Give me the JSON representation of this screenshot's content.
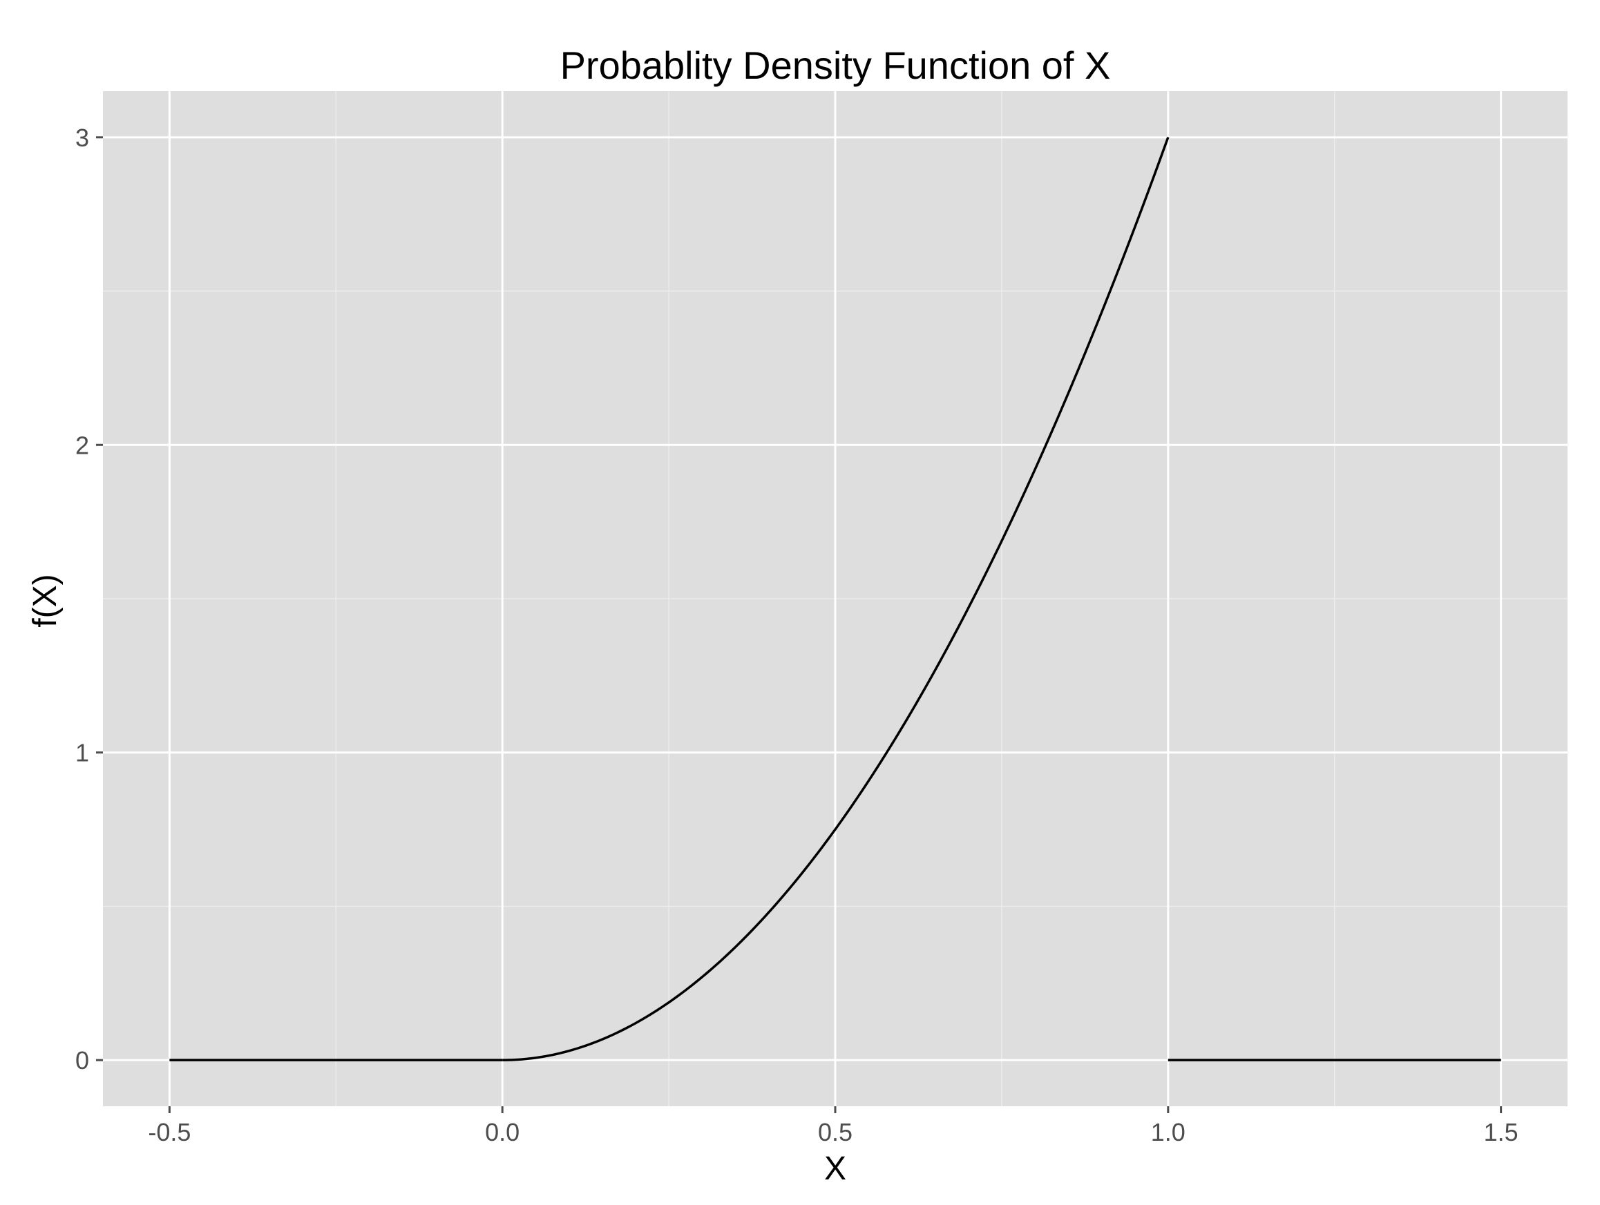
{
  "chart_data": {
    "type": "line",
    "title": "Probablity Density Function of X",
    "xlabel": "X",
    "ylabel": "f(X)",
    "xlim": [
      -0.6,
      1.6
    ],
    "ylim": [
      -0.15,
      3.15
    ],
    "x_ticks": [
      -0.5,
      0.0,
      0.5,
      1.0,
      1.5
    ],
    "x_tick_labels": [
      "-0.5",
      "0.0",
      "0.5",
      "1.0",
      "1.5"
    ],
    "y_ticks": [
      0,
      1,
      2,
      3
    ],
    "y_tick_labels": [
      "0",
      "1",
      "2",
      "3"
    ],
    "x_minor_ticks": [
      -0.25,
      0.25,
      0.75,
      1.25
    ],
    "y_minor_ticks": [
      0.5,
      1.5,
      2.5
    ],
    "grid": true,
    "series": [
      {
        "segment": "left-zero",
        "x": [
          -0.5,
          0.0
        ],
        "y": [
          0,
          0
        ]
      },
      {
        "segment": "curve",
        "x": [
          0.0,
          0.1,
          0.2,
          0.3,
          0.4,
          0.5,
          0.6,
          0.7,
          0.8,
          0.9,
          1.0
        ],
        "y": [
          0,
          0.03,
          0.12,
          0.27,
          0.48,
          0.75,
          1.08,
          1.47,
          1.92,
          2.43,
          3.0
        ]
      },
      {
        "segment": "right-zero",
        "x": [
          1.0,
          1.5
        ],
        "y": [
          0,
          0
        ]
      }
    ],
    "colors": {
      "panel": "#dedede",
      "grid_major": "#ffffff",
      "grid_minor": "#ececec",
      "line": "#000000",
      "tick": "#4d4d4d"
    }
  }
}
